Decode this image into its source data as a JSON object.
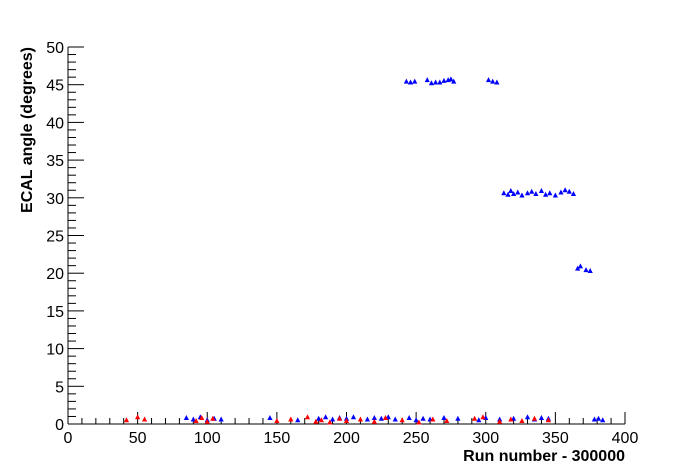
{
  "chart_data": {
    "type": "scatter",
    "x_label": "Run number - 300000",
    "y_label": "ECAL angle (degrees)",
    "xlim": [
      0,
      400
    ],
    "xticks": [
      0,
      50,
      100,
      150,
      200,
      250,
      300,
      350,
      400
    ],
    "ylim": [
      0,
      50
    ],
    "yticks": [
      0,
      5,
      10,
      15,
      20,
      25,
      30,
      35,
      40,
      45,
      50
    ],
    "grid": false,
    "series": [
      {
        "color": "#0000ff",
        "x": [
          243,
          246,
          249,
          258,
          261,
          264,
          267,
          270,
          273,
          275,
          277,
          302,
          305,
          308,
          313,
          316,
          318,
          320,
          323,
          326,
          330,
          333,
          336,
          340,
          343,
          346,
          350,
          354,
          357,
          360,
          363,
          366,
          368,
          372,
          375,
          85,
          90,
          95,
          100,
          105,
          110,
          145,
          165,
          180,
          185,
          190,
          195,
          200,
          205,
          215,
          220,
          225,
          230,
          235,
          245,
          250,
          255,
          260,
          270,
          280,
          295,
          300,
          310,
          320,
          330,
          335,
          340,
          345,
          378,
          381,
          384
        ],
        "values": [
          45.4,
          45.3,
          45.4,
          45.6,
          45.2,
          45.3,
          45.3,
          45.5,
          45.6,
          45.7,
          45.4,
          45.6,
          45.4,
          45.3,
          30.6,
          30.4,
          30.9,
          30.5,
          30.7,
          30.3,
          30.6,
          30.8,
          30.5,
          30.9,
          30.4,
          30.6,
          30.3,
          30.7,
          31.0,
          30.8,
          30.5,
          20.6,
          20.9,
          20.4,
          20.3,
          0.8,
          0.6,
          0.9,
          0.5,
          0.7,
          0.6,
          0.8,
          0.5,
          0.7,
          0.9,
          0.6,
          0.8,
          0.7,
          0.9,
          0.6,
          0.8,
          0.7,
          0.9,
          0.6,
          0.8,
          0.5,
          0.7,
          0.6,
          0.8,
          0.7,
          0.5,
          0.8,
          0.6,
          0.7,
          0.9,
          0.6,
          0.8,
          0.7,
          0.6,
          0.7,
          0.5
        ]
      },
      {
        "color": "#ff0000",
        "x": [
          42,
          50,
          55,
          92,
          96,
          100,
          104,
          150,
          160,
          172,
          178,
          182,
          188,
          195,
          200,
          210,
          220,
          228,
          240,
          252,
          262,
          272,
          292,
          298,
          310,
          318,
          326,
          335,
          345
        ],
        "values": [
          0.5,
          0.9,
          0.6,
          0.4,
          0.8,
          0.3,
          0.7,
          0.4,
          0.6,
          0.9,
          0.3,
          0.5,
          0.2,
          0.7,
          0.4,
          0.6,
          0.3,
          0.8,
          0.5,
          0.2,
          0.6,
          0.4,
          0.7,
          0.9,
          0.3,
          0.6,
          0.4,
          0.7,
          0.5
        ]
      }
    ]
  }
}
